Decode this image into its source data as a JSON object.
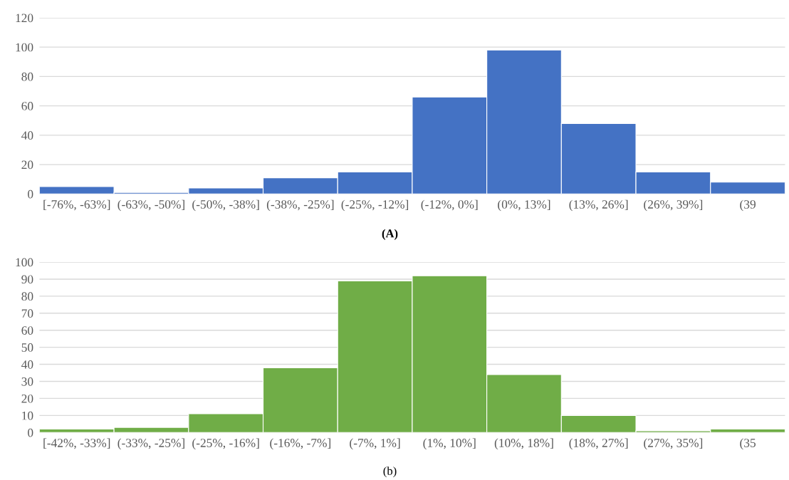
{
  "chart_data": [
    {
      "type": "bar",
      "categories": [
        "[-76%, -63%]",
        "(-63%, -50%]",
        "(-50%, -38%]",
        "(-38%, -25%]",
        "(-25%, -12%]",
        "(-12%, 0%]",
        "(0%, 13%]",
        "(13%, 26%]",
        "(26%, 39%]",
        "(39"
      ],
      "values": [
        5,
        1,
        4,
        11,
        15,
        66,
        98,
        48,
        15,
        8
      ],
      "color": "#4472c4",
      "ylim": [
        0,
        120
      ],
      "yticks": [
        0,
        20,
        40,
        60,
        80,
        100,
        120
      ],
      "grid": "y",
      "annotations": [
        "(A)"
      ]
    },
    {
      "type": "bar",
      "categories": [
        "[-42%, -33%]",
        "(-33%, -25%]",
        "(-25%, -16%]",
        "(-16%, -7%]",
        "(-7%, 1%]",
        "(1%, 10%]",
        "(10%, 18%]",
        "(18%, 27%]",
        "(27%, 35%]",
        "(35"
      ],
      "values": [
        2,
        3,
        11,
        38,
        89,
        92,
        34,
        10,
        1,
        2
      ],
      "color": "#70ad47",
      "ylim": [
        0,
        100
      ],
      "yticks": [
        0,
        10,
        20,
        30,
        40,
        50,
        60,
        70,
        80,
        90,
        100
      ],
      "grid": "y",
      "annotations": [
        "(b)"
      ]
    }
  ]
}
